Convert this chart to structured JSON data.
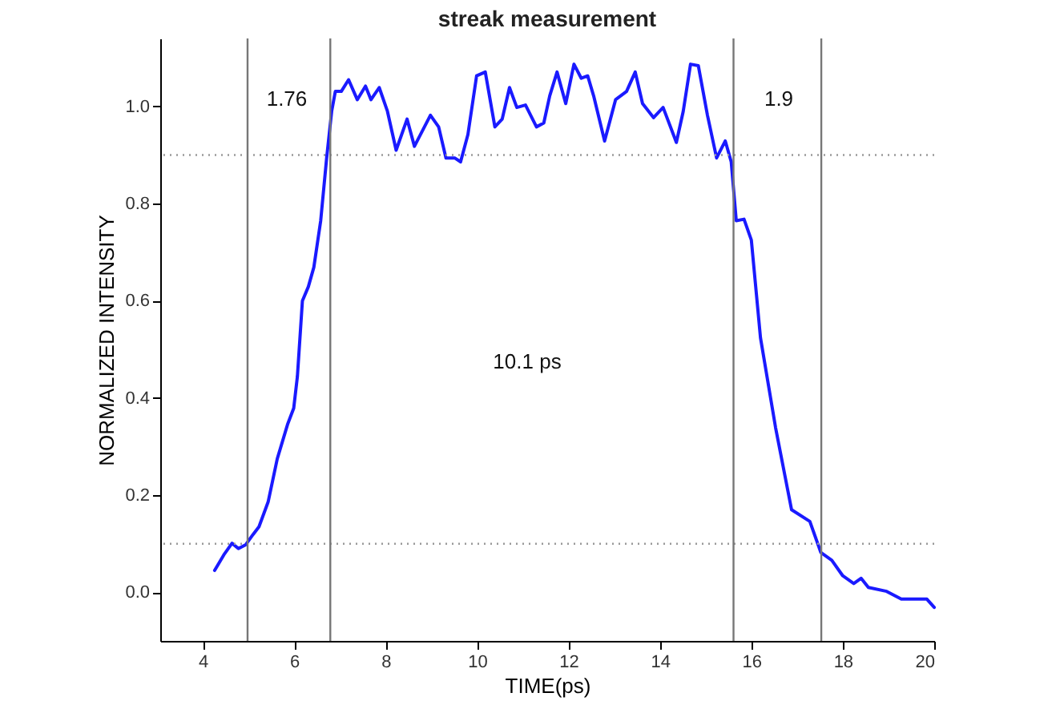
{
  "chart_data": {
    "type": "line",
    "title": "streak measurement",
    "xlabel": "TIME(ps)",
    "ylabel": "NORMALIZED INTENSITY",
    "x": [
      4.26,
      4.46,
      4.64,
      4.78,
      4.94,
      5.1,
      5.23,
      5.43,
      5.63,
      5.86,
      5.99,
      6.07,
      6.18,
      6.31,
      6.43,
      6.58,
      6.71,
      6.82,
      6.9,
      7.03,
      7.19,
      7.38,
      7.56,
      7.68,
      7.86,
      8.04,
      8.23,
      8.47,
      8.63,
      8.98,
      9.16,
      9.32,
      9.51,
      9.64,
      9.8,
      9.99,
      10.18,
      10.39,
      10.55,
      10.71,
      10.87,
      11.06,
      11.3,
      11.46,
      11.59,
      11.75,
      11.94,
      12.12,
      12.28,
      12.42,
      12.55,
      12.79,
      13.03,
      13.27,
      13.46,
      13.62,
      13.86,
      14.07,
      14.36,
      14.51,
      14.67,
      14.84,
      15.04,
      15.24,
      15.43,
      15.56,
      15.67,
      15.84,
      16.0,
      16.2,
      16.53,
      16.88,
      17.28,
      17.52,
      17.76,
      18.0,
      18.24,
      18.4,
      18.56,
      18.96,
      19.28,
      19.6,
      19.84,
      20.0
    ],
    "series": [
      {
        "color": "#1a1aff",
        "values": [
          0.045,
          0.077,
          0.101,
          0.09,
          0.098,
          0.119,
          0.135,
          0.186,
          0.275,
          0.347,
          0.379,
          0.444,
          0.6,
          0.629,
          0.669,
          0.765,
          0.894,
          0.99,
          1.031,
          1.031,
          1.055,
          1.014,
          1.042,
          1.014,
          1.039,
          0.99,
          0.91,
          0.974,
          0.918,
          0.982,
          0.958,
          0.894,
          0.894,
          0.886,
          0.942,
          1.063,
          1.071,
          0.958,
          0.974,
          1.039,
          0.998,
          1.003,
          0.958,
          0.966,
          1.022,
          1.071,
          1.006,
          1.087,
          1.058,
          1.063,
          1.022,
          0.929,
          1.014,
          1.031,
          1.071,
          1.006,
          0.977,
          0.998,
          0.926,
          0.99,
          1.087,
          1.084,
          0.982,
          0.894,
          0.929,
          0.886,
          0.765,
          0.768,
          0.725,
          0.524,
          0.339,
          0.17,
          0.146,
          0.082,
          0.066,
          0.034,
          0.018,
          0.029,
          0.01,
          0.002,
          -0.014,
          -0.014,
          -0.014,
          -0.031
        ]
      }
    ],
    "xlim": [
      3.07,
      20
    ],
    "xticks": [
      4,
      6,
      8,
      10,
      12,
      14,
      16,
      18,
      20
    ],
    "ylim": [
      -0.1,
      1.14
    ],
    "yticks": [
      {
        "value": 0,
        "label": "0.0"
      },
      0.2,
      0.4,
      0.6,
      0.8,
      {
        "value": 1,
        "label": "1.0"
      }
    ],
    "ref_lines": [
      {
        "axis": "y",
        "value": 0.9,
        "color": "#999999",
        "line_style": "dotted"
      },
      {
        "axis": "y",
        "value": 0.1,
        "color": "#999999",
        "line_style": "dotted"
      },
      {
        "axis": "x",
        "value": 4.98,
        "color": "#777777",
        "line_style": "solid"
      },
      {
        "axis": "x",
        "value": 6.79,
        "color": "#777777",
        "line_style": "solid"
      },
      {
        "axis": "x",
        "value": 15.61,
        "color": "#777777",
        "line_style": "solid"
      },
      {
        "axis": "x",
        "value": 17.53,
        "color": "#777777",
        "line_style": "solid"
      }
    ],
    "annotations": [
      "1.76",
      "1.9",
      "10.1 ps"
    ],
    "grid": false,
    "marker": "none",
    "line_style": "solid"
  }
}
